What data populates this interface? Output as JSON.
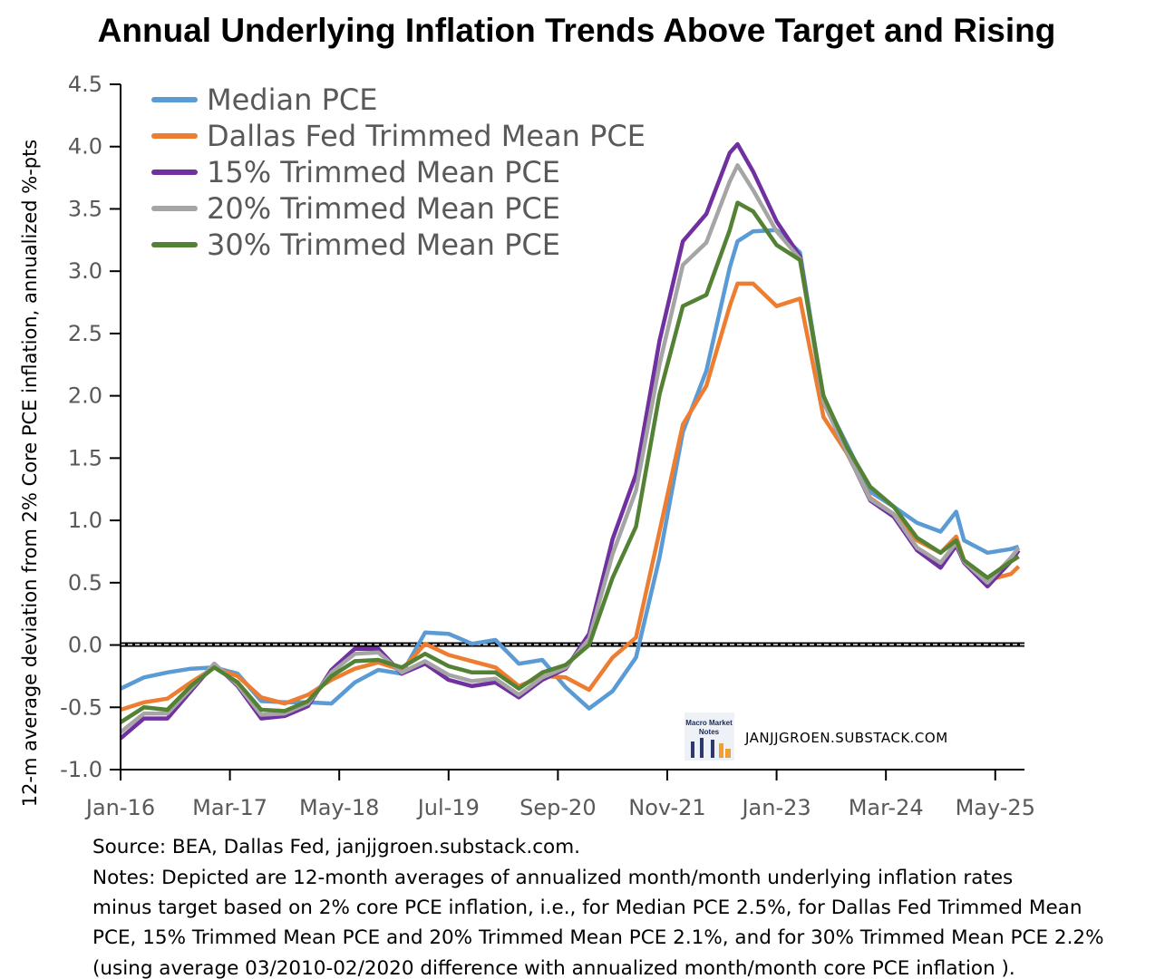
{
  "chart_data": {
    "type": "line",
    "title": "Annual Underlying Inflation Trends Above Target and Rising",
    "xlabel": "",
    "ylabel": "12-m average deviation from 2% Core PCE inflation, annualized %-pts",
    "ylim": [
      -1.0,
      4.5
    ],
    "yticks": [
      "4.5",
      "4.0",
      "3.5",
      "3.0",
      "2.5",
      "2.0",
      "1.5",
      "1.0",
      "0.5",
      "0.0",
      "-0.5",
      "-1.0"
    ],
    "xtick_labels": [
      "Jan-16",
      "Mar-17",
      "May-18",
      "Jul-19",
      "Sep-20",
      "Nov-21",
      "Jan-23",
      "Mar-24",
      "May-25"
    ],
    "xtick_dates": [
      "2016-01",
      "2017-03",
      "2018-05",
      "2019-07",
      "2020-09",
      "2021-11",
      "2023-01",
      "2024-03",
      "2025-05"
    ],
    "xlim": [
      "2016-01",
      "2025-08"
    ],
    "reference_line": 0.0,
    "legend_position": "top-left",
    "x": [
      "2016-01",
      "2016-04",
      "2016-07",
      "2016-10",
      "2017-01",
      "2017-04",
      "2017-07",
      "2017-10",
      "2018-01",
      "2018-04",
      "2018-07",
      "2018-10",
      "2019-01",
      "2019-04",
      "2019-07",
      "2019-10",
      "2020-01",
      "2020-04",
      "2020-07",
      "2020-10",
      "2021-01",
      "2021-04",
      "2021-07",
      "2021-10",
      "2022-01",
      "2022-04",
      "2022-07",
      "2022-08",
      "2022-10",
      "2023-01",
      "2023-04",
      "2023-07",
      "2023-10",
      "2024-01",
      "2024-04",
      "2024-07",
      "2024-10",
      "2024-12",
      "2025-01",
      "2025-04",
      "2025-07",
      "2025-08"
    ],
    "series": [
      {
        "name": "Median PCE",
        "color": "#5B9BD5",
        "values": [
          -0.35,
          -0.26,
          -0.22,
          -0.19,
          -0.18,
          -0.23,
          -0.45,
          -0.46,
          -0.46,
          -0.47,
          -0.3,
          -0.2,
          -0.23,
          0.1,
          0.09,
          0.01,
          0.04,
          -0.15,
          -0.12,
          -0.34,
          -0.51,
          -0.37,
          -0.1,
          0.7,
          1.71,
          2.2,
          3.03,
          3.24,
          3.32,
          3.33,
          3.15,
          1.98,
          1.61,
          1.23,
          1.11,
          0.98,
          0.91,
          1.07,
          0.84,
          0.74,
          0.77,
          0.79
        ]
      },
      {
        "name": "Dallas Fed Trimmed Mean PCE",
        "color": "#ED7D31",
        "values": [
          -0.52,
          -0.46,
          -0.43,
          -0.3,
          -0.18,
          -0.25,
          -0.42,
          -0.47,
          -0.4,
          -0.28,
          -0.19,
          -0.14,
          -0.2,
          0.01,
          -0.08,
          -0.13,
          -0.18,
          -0.33,
          -0.25,
          -0.26,
          -0.36,
          -0.1,
          0.06,
          0.91,
          1.77,
          2.08,
          2.72,
          2.9,
          2.9,
          2.72,
          2.78,
          1.83,
          1.54,
          1.18,
          1.05,
          0.84,
          0.74,
          0.87,
          0.68,
          0.52,
          0.57,
          0.63
        ]
      },
      {
        "name": "15% Trimmed Mean PCE",
        "color": "#7030A0",
        "values": [
          -0.75,
          -0.59,
          -0.59,
          -0.37,
          -0.15,
          -0.33,
          -0.59,
          -0.57,
          -0.49,
          -0.2,
          -0.03,
          -0.03,
          -0.23,
          -0.15,
          -0.28,
          -0.33,
          -0.3,
          -0.42,
          -0.28,
          -0.19,
          0.09,
          0.85,
          1.37,
          2.44,
          3.24,
          3.46,
          3.95,
          4.02,
          3.8,
          3.4,
          3.12,
          1.95,
          1.55,
          1.16,
          1.03,
          0.76,
          0.62,
          0.8,
          0.66,
          0.47,
          0.67,
          0.76
        ]
      },
      {
        "name": "20% Trimmed Mean PCE",
        "color": "#A5A5A5",
        "values": [
          -0.7,
          -0.55,
          -0.55,
          -0.35,
          -0.15,
          -0.32,
          -0.56,
          -0.55,
          -0.47,
          -0.22,
          -0.07,
          -0.06,
          -0.22,
          -0.13,
          -0.24,
          -0.29,
          -0.27,
          -0.4,
          -0.26,
          -0.18,
          0.05,
          0.73,
          1.24,
          2.25,
          3.05,
          3.23,
          3.72,
          3.85,
          3.65,
          3.32,
          3.1,
          1.95,
          1.55,
          1.17,
          1.05,
          0.78,
          0.66,
          0.82,
          0.67,
          0.5,
          0.7,
          0.78
        ]
      },
      {
        "name": "30% Trimmed Mean PCE",
        "color": "#548235",
        "values": [
          -0.62,
          -0.5,
          -0.52,
          -0.33,
          -0.18,
          -0.3,
          -0.52,
          -0.53,
          -0.45,
          -0.25,
          -0.13,
          -0.12,
          -0.18,
          -0.07,
          -0.17,
          -0.22,
          -0.22,
          -0.35,
          -0.22,
          -0.16,
          0.0,
          0.54,
          0.95,
          2.01,
          2.72,
          2.81,
          3.33,
          3.55,
          3.48,
          3.21,
          3.09,
          2.0,
          1.59,
          1.27,
          1.11,
          0.86,
          0.74,
          0.84,
          0.68,
          0.54,
          0.67,
          0.71
        ]
      }
    ]
  },
  "watermark": {
    "logo_text": "Macro Market Notes",
    "site": "JANJJGROEN.SUBSTACK.COM"
  },
  "notes": {
    "source": "Source: BEA, Dallas Fed, janjjgroen.substack.com.",
    "lines": [
      "Notes: Depicted are 12-month averages of annualized month/month underlying inflation rates",
      "minus target based on 2% core PCE inflation, i.e., for Median PCE 2.5%, for Dallas Fed Trimmed Mean",
      "PCE, 15% Trimmed Mean PCE and 20% Trimmed Mean PCE 2.1%, and for 30% Trimmed Mean PCE 2.2%",
      "(using average 03/2010-02/2020 difference with annualized month/month core PCE inflation )."
    ]
  }
}
